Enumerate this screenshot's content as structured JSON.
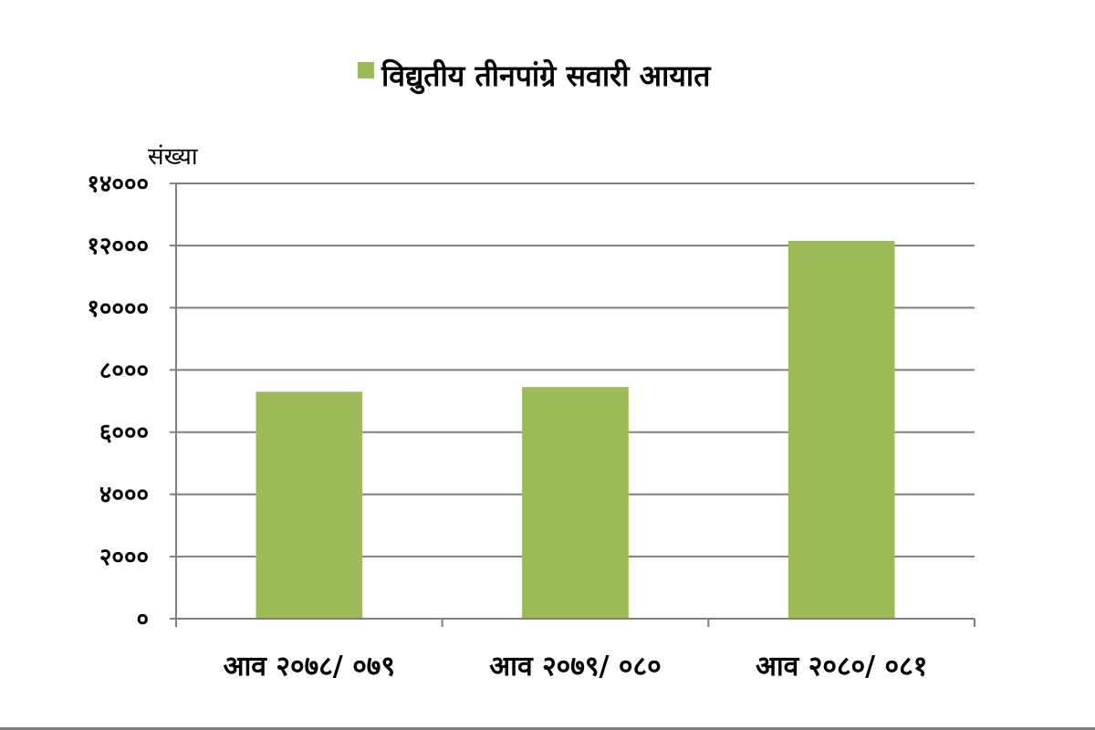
{
  "chart_data": {
    "type": "bar",
    "categories": [
      "आव २०७८/ ०७९",
      "आव २०७९/ ०८०",
      "आव २०८०/ ०८१"
    ],
    "series": [
      {
        "name": "विद्युतीय तीनपांग्रे सवारी आयात",
        "values": [
          7300,
          7450,
          12150
        ],
        "color": "#9bbb59"
      }
    ],
    "ylabel": "संख्या",
    "ylim": [
      0,
      14000
    ],
    "yticks": [
      {
        "value": 0,
        "label": "०"
      },
      {
        "value": 2000,
        "label": "२०००"
      },
      {
        "value": 4000,
        "label": "४०००"
      },
      {
        "value": 6000,
        "label": "६०००"
      },
      {
        "value": 8000,
        "label": "८०००"
      },
      {
        "value": 10000,
        "label": "१००००"
      },
      {
        "value": 12000,
        "label": "१२०००"
      },
      {
        "value": 14000,
        "label": "१४०००"
      }
    ],
    "grid": true,
    "legend_position": "top"
  }
}
